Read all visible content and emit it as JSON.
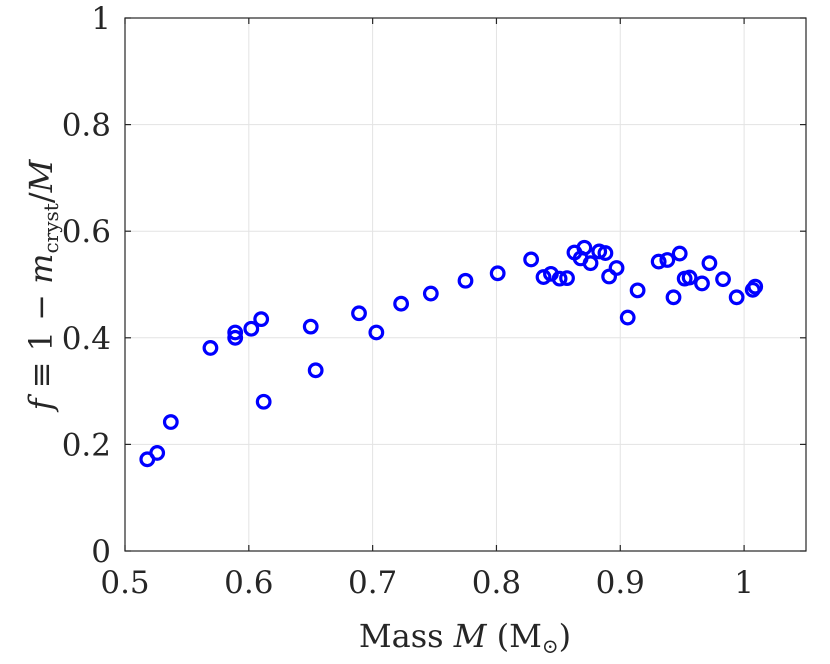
{
  "chart_data": {
    "type": "scatter",
    "title": "",
    "xlabel": "Mass M (M⊙)",
    "xlabel_parts": {
      "prefix": "Mass ",
      "var": "M",
      "open": " (M",
      "sub": "⊙",
      "close": ")"
    },
    "ylabel": "f ≡ 1 − m_cryst/M",
    "ylabel_parts": {
      "f": "f",
      "mid": " ≡ 1 − ",
      "m": "m",
      "sub": "cryst",
      "div": "/",
      "M": "M"
    },
    "xlim": [
      0.5,
      1.05
    ],
    "ylim": [
      0,
      1
    ],
    "xticks": [
      0.5,
      0.6,
      0.7,
      0.8,
      0.9,
      1
    ],
    "xtick_labels": [
      "0.5",
      "0.6",
      "0.7",
      "0.8",
      "0.9",
      "1"
    ],
    "yticks": [
      0,
      0.2,
      0.4,
      0.6,
      0.8,
      1
    ],
    "ytick_labels": [
      "0",
      "0.2",
      "0.4",
      "0.6",
      "0.8",
      "1"
    ],
    "grid": true,
    "marker": "open-circle",
    "color": "#0000ff",
    "series": [
      {
        "name": "data",
        "points": [
          [
            0.518,
            0.172
          ],
          [
            0.526,
            0.184
          ],
          [
            0.537,
            0.242
          ],
          [
            0.569,
            0.381
          ],
          [
            0.589,
            0.4
          ],
          [
            0.589,
            0.41
          ],
          [
            0.602,
            0.417
          ],
          [
            0.61,
            0.435
          ],
          [
            0.612,
            0.28
          ],
          [
            0.65,
            0.421
          ],
          [
            0.654,
            0.339
          ],
          [
            0.689,
            0.446
          ],
          [
            0.703,
            0.41
          ],
          [
            0.723,
            0.464
          ],
          [
            0.747,
            0.483
          ],
          [
            0.775,
            0.507
          ],
          [
            0.801,
            0.521
          ],
          [
            0.828,
            0.547
          ],
          [
            0.838,
            0.514
          ],
          [
            0.844,
            0.52
          ],
          [
            0.851,
            0.511
          ],
          [
            0.857,
            0.512
          ],
          [
            0.863,
            0.56
          ],
          [
            0.868,
            0.549
          ],
          [
            0.871,
            0.569
          ],
          [
            0.876,
            0.54
          ],
          [
            0.883,
            0.562
          ],
          [
            0.888,
            0.559
          ],
          [
            0.891,
            0.515
          ],
          [
            0.897,
            0.531
          ],
          [
            0.906,
            0.438
          ],
          [
            0.914,
            0.489
          ],
          [
            0.931,
            0.543
          ],
          [
            0.938,
            0.546
          ],
          [
            0.943,
            0.476
          ],
          [
            0.948,
            0.558
          ],
          [
            0.952,
            0.511
          ],
          [
            0.956,
            0.513
          ],
          [
            0.966,
            0.502
          ],
          [
            0.972,
            0.54
          ],
          [
            0.983,
            0.51
          ],
          [
            0.994,
            0.476
          ],
          [
            1.007,
            0.49
          ],
          [
            1.009,
            0.496
          ]
        ]
      }
    ]
  }
}
